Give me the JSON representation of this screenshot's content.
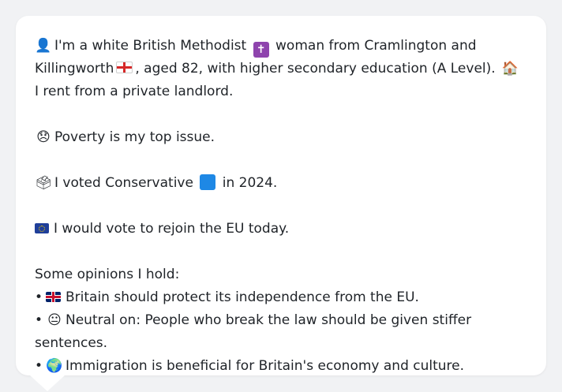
{
  "profile": {
    "intro_part1": "I'm a white British Methodist",
    "intro_part2": "woman from Cramlington and Killingworth",
    "intro_part3": ", aged 82, with higher secondary education (A Level).",
    "intro_part4": "I rent from a private landlord.",
    "cross_glyph": "✝",
    "home_glyph": "🏠",
    "person_glyph": "👤"
  },
  "issue": {
    "glyph": "😞",
    "text": "Poverty is my top issue."
  },
  "vote": {
    "glyph": "🗳",
    "text_before": "I voted Conservative",
    "text_after": "in 2024.",
    "party_color": "#1e88e5"
  },
  "eu": {
    "text": "I would vote to rejoin the EU today."
  },
  "opinions": {
    "heading": "Some opinions I hold:",
    "bullet": "•",
    "items": [
      {
        "icon": "uk-flag",
        "text": "Britain should protect its independence from the EU."
      },
      {
        "icon": "neutral-face",
        "glyph": "😐",
        "text": "Neutral on: People who break the law should be given stiffer sentences."
      },
      {
        "icon": "globe",
        "glyph": "🌍",
        "text": "Immigration is beneficial for Britain's economy and culture."
      }
    ]
  }
}
